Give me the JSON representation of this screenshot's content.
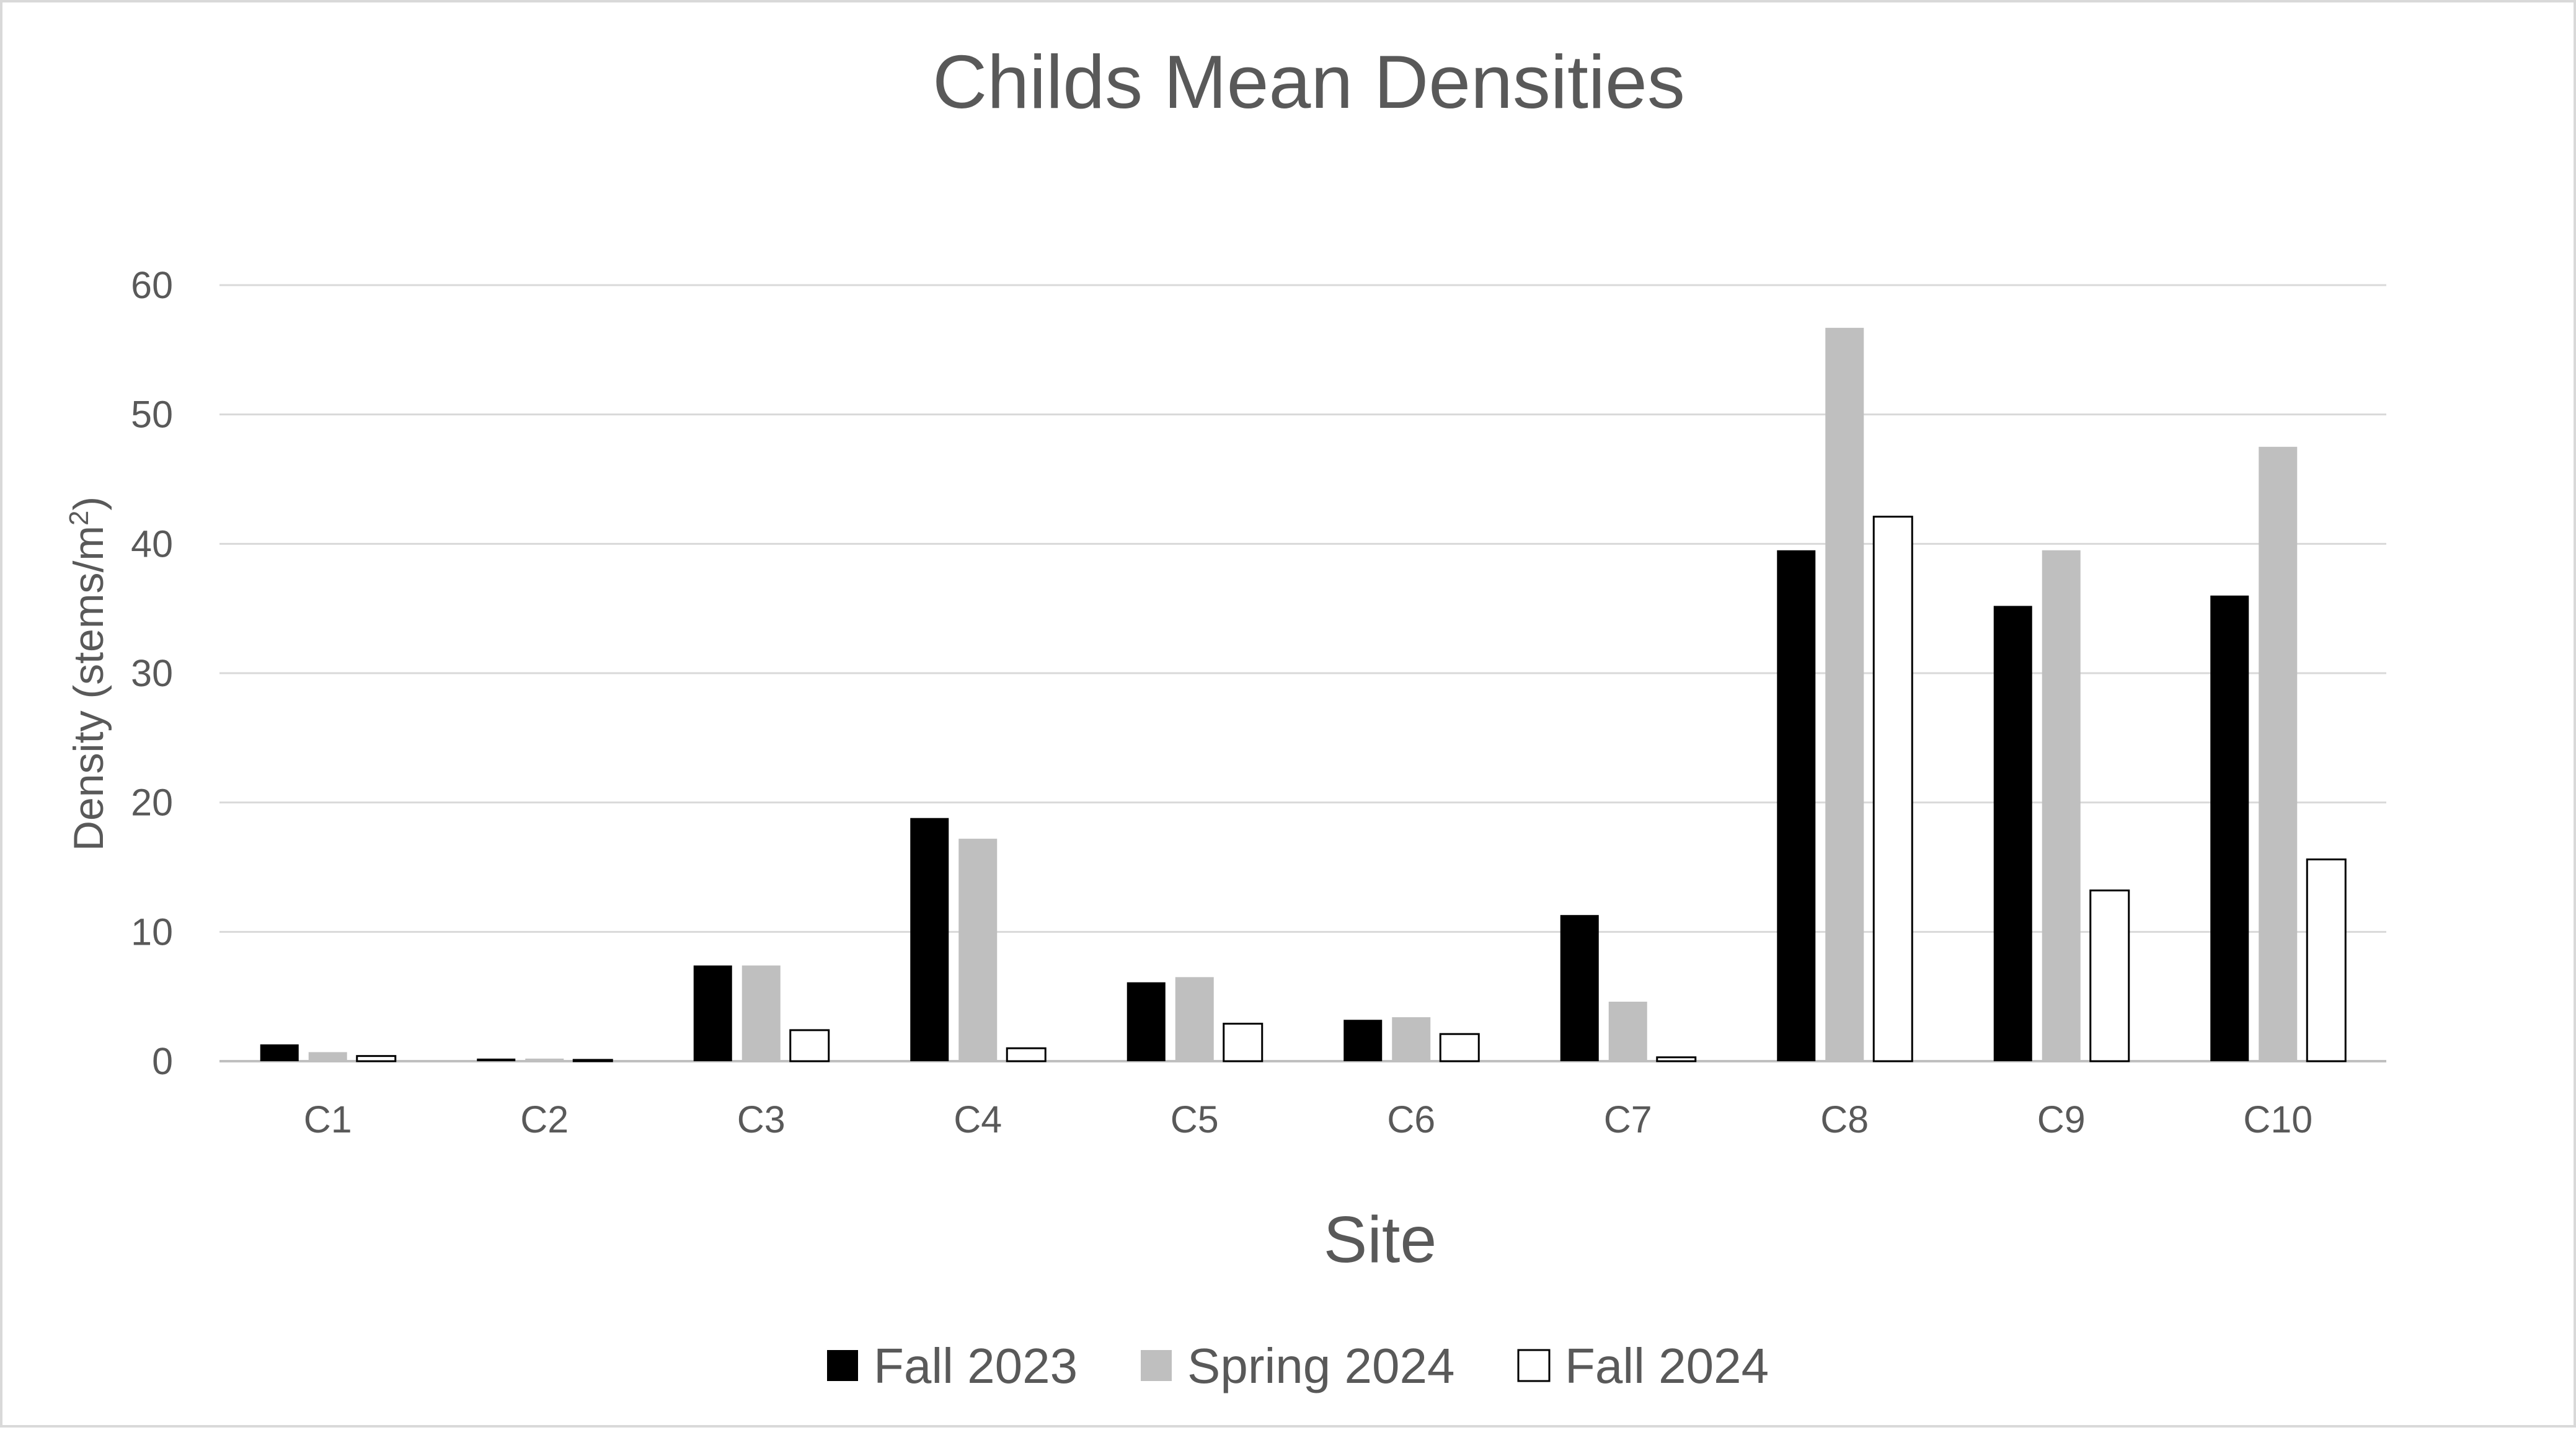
{
  "chart_data": {
    "type": "bar",
    "title": "Childs Mean Densities",
    "xlabel": "Site",
    "ylabel_main": "Density (stems/m",
    "ylabel_sup": "2",
    "ylabel_end": ")",
    "ylim": [
      0,
      60
    ],
    "yticks": [
      0,
      10,
      20,
      30,
      40,
      50,
      60
    ],
    "grid": true,
    "legend_position": "bottom",
    "categories": [
      "C1",
      "C2",
      "C3",
      "C4",
      "C5",
      "C6",
      "C7",
      "C8",
      "C9",
      "C10"
    ],
    "series": [
      {
        "name": "Fall 2023",
        "color": "#000000",
        "values": [
          1.3,
          0.2,
          7.4,
          18.8,
          6.1,
          3.2,
          11.3,
          39.5,
          35.2,
          36.0
        ]
      },
      {
        "name": "Spring 2024",
        "color": "#bfbfbf",
        "values": [
          0.7,
          0.2,
          7.4,
          17.2,
          6.5,
          3.4,
          4.6,
          56.7,
          39.5,
          47.5
        ]
      },
      {
        "name": "Fall 2024",
        "color": "#ffffff",
        "values": [
          0.4,
          0.1,
          2.4,
          1.0,
          2.9,
          2.1,
          0.3,
          42.1,
          13.2,
          15.6
        ]
      }
    ]
  }
}
